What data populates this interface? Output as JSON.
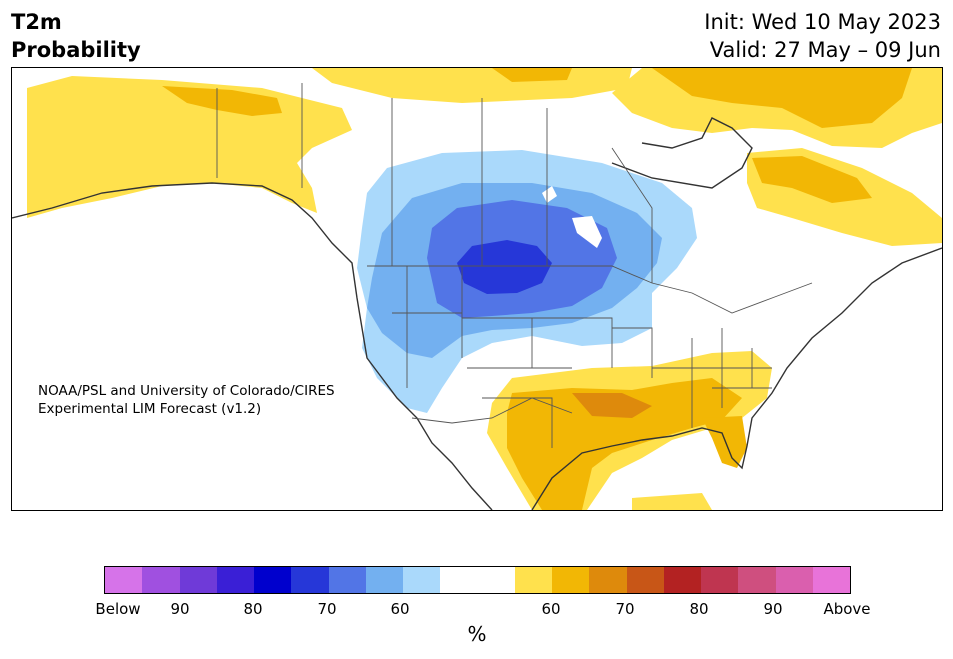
{
  "header": {
    "title_left": "T2m\nProbability",
    "title_right": "Init: Wed 10 May 2023\nValid: 27 May – 09 Jun"
  },
  "map": {
    "credit": "NOAA/PSL and University of Colorado/CIRES\nExperimental LIM Forecast (v1.2)"
  },
  "colorbar": {
    "colors": [
      "#d673e9",
      "#a050e0",
      "#6f3ad8",
      "#3a1fd6",
      "#0000cd",
      "#2637d8",
      "#5275e6",
      "#73b0f0",
      "#aad9fb",
      "#ffffff",
      "#ffffff",
      "#ffe14d",
      "#f2b705",
      "#de8a0c",
      "#c85617",
      "#b32222",
      "#bf3550",
      "#cf4f7f",
      "#da5fae",
      "#e873d9"
    ],
    "tick_labels": [
      "Below",
      "90",
      "80",
      "70",
      "60",
      "60",
      "70",
      "80",
      "90",
      "Above"
    ],
    "unit": "%"
  }
}
